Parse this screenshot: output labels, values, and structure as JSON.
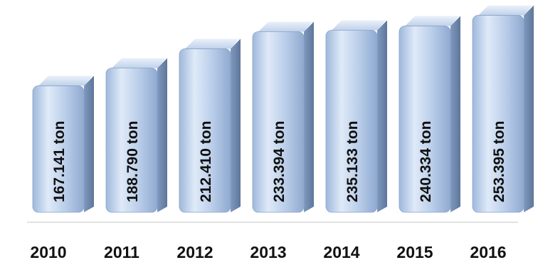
{
  "chart_data": {
    "type": "bar",
    "categories": [
      "2010",
      "2011",
      "2012",
      "2013",
      "2014",
      "2015",
      "2016"
    ],
    "values": [
      167141,
      188790,
      212410,
      233394,
      235133,
      240334,
      253395
    ],
    "data_labels": [
      "167.141 ton",
      "188.790 ton",
      "212.410 ton",
      "233.394 ton",
      "235.133 ton",
      "240.334 ton",
      "253.395 ton"
    ],
    "title": "",
    "xlabel": "",
    "ylabel": "",
    "ylim": [
      0,
      260000
    ],
    "grid": false,
    "legend": "none",
    "colors": {
      "bar_light": "#e9f1fb",
      "bar_mid": "#b3c9e6",
      "bar_dark": "#7d97bd",
      "bar_side": "#6e86a8",
      "bar_top": "#d3e1f2",
      "baseline": "#d9d9d9"
    }
  }
}
